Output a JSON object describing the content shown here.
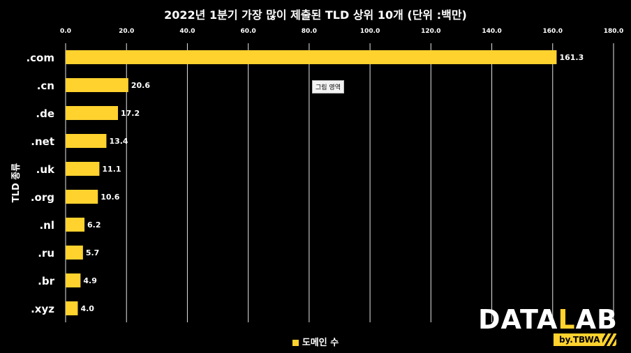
{
  "chart_data": {
    "type": "bar",
    "orientation": "horizontal",
    "title": "2022년 1분기 가장 많이 제출된 TLD 상위 10개 (단위 :백만)",
    "ylabel": "TLD 종류",
    "categories": [
      ".com",
      ".cn",
      ".de",
      ".net",
      ".uk",
      ".org",
      ".nl",
      ".ru",
      ".br",
      ".xyz"
    ],
    "series": [
      {
        "name": "도메인 수",
        "values": [
          161.3,
          20.6,
          17.2,
          13.4,
          11.1,
          10.6,
          6.2,
          5.7,
          4.9,
          4.0
        ],
        "labels": [
          "161.3",
          "20.6",
          "17.2",
          "13.4",
          "11.1",
          "10.6",
          "6.2",
          "5.7",
          "4.9",
          "4.0"
        ],
        "color": "#ffd22e"
      }
    ],
    "xlim": [
      0,
      180
    ],
    "xticks": [
      "0.0",
      "20.0",
      "40.0",
      "60.0",
      "80.0",
      "100.0",
      "120.0",
      "140.0",
      "160.0",
      "180.0"
    ],
    "grid": true,
    "legend_position": "bottom"
  },
  "tooltip": "그림 영역",
  "brand": {
    "main_a": "DATA",
    "main_accent": "L",
    "main_b": "AB",
    "sub": "by.TBWA"
  },
  "colors": {
    "background": "#000000",
    "bar": "#ffd22e",
    "grid": "#ffffff",
    "text": "#ffffff"
  }
}
